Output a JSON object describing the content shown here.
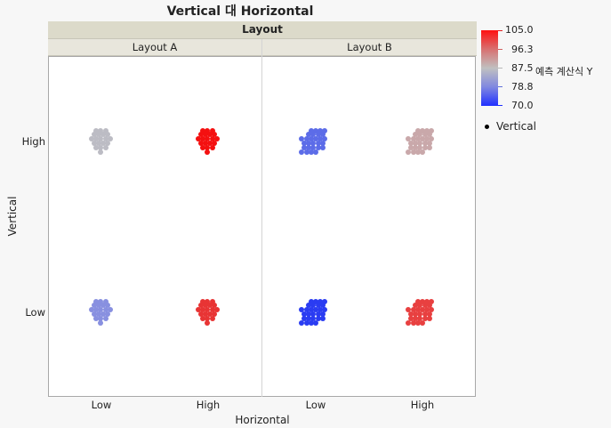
{
  "title": "Vertical 대 Horizontal",
  "header": {
    "group_label": "Layout",
    "panels": [
      "Layout A",
      "Layout B"
    ]
  },
  "y_axis": {
    "label": "Vertical",
    "ticks": [
      "High",
      "Low"
    ]
  },
  "x_axis": {
    "label": "Horizontal",
    "ticks": [
      "Low",
      "High",
      "Low",
      "High"
    ]
  },
  "color_scale": {
    "title": "예측 계산식 Y",
    "ticks": [
      "105.0",
      "96.3",
      "87.5",
      "78.8",
      "70.0"
    ],
    "min": 70.0,
    "max": 105.0,
    "colors": {
      "high": "#ff1010",
      "mid": "#c0c0c0",
      "low": "#2030ff"
    }
  },
  "legend": {
    "items": [
      {
        "label": "Vertical",
        "marker": "dot"
      }
    ]
  },
  "chart_data": {
    "type": "scatter",
    "title": "Vertical 대 Horizontal",
    "xlabel": "Horizontal",
    "ylabel": "Vertical",
    "facet": "Layout",
    "facets": [
      "Layout A",
      "Layout B"
    ],
    "x_categories": [
      "Low",
      "High"
    ],
    "y_categories": [
      "Low",
      "High"
    ],
    "color_variable": "예측 계산식 Y",
    "color_range": [
      70.0,
      105.0
    ],
    "cells": [
      {
        "layout": "Layout A",
        "horizontal": "Low",
        "vertical": "High",
        "approx_points": 20,
        "approx_color_value": 87.5,
        "color": "#bcbcc4"
      },
      {
        "layout": "Layout A",
        "horizontal": "High",
        "vertical": "High",
        "approx_points": 20,
        "approx_color_value": 105.0,
        "color": "#f41010"
      },
      {
        "layout": "Layout B",
        "horizontal": "Low",
        "vertical": "High",
        "approx_points": 28,
        "approx_color_value": 76.0,
        "color": "#5c6ce8"
      },
      {
        "layout": "Layout B",
        "horizontal": "High",
        "vertical": "High",
        "approx_points": 28,
        "approx_color_value": 91.0,
        "color": "#c9a8aa"
      },
      {
        "layout": "Layout A",
        "horizontal": "Low",
        "vertical": "Low",
        "approx_points": 20,
        "approx_color_value": 80.0,
        "color": "#8890e0"
      },
      {
        "layout": "Layout A",
        "horizontal": "High",
        "vertical": "Low",
        "approx_points": 20,
        "approx_color_value": 101.0,
        "color": "#e83434"
      },
      {
        "layout": "Layout B",
        "horizontal": "Low",
        "vertical": "Low",
        "approx_points": 28,
        "approx_color_value": 71.0,
        "color": "#2a3cf2"
      },
      {
        "layout": "Layout B",
        "horizontal": "High",
        "vertical": "Low",
        "approx_points": 28,
        "approx_color_value": 100.0,
        "color": "#e84040"
      }
    ],
    "legend": [
      "Vertical"
    ],
    "grid": false
  }
}
